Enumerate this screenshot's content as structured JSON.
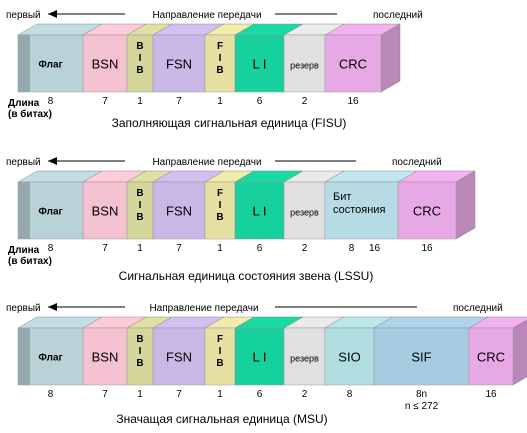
{
  "direction": {
    "first": "первый",
    "title": "Направление передачи",
    "last": "последний"
  },
  "length_label": [
    "Длина",
    "(в битах)"
  ],
  "frames": [
    {
      "id": "fisu",
      "caption": "Заполняющая сигнальная единица (FISU)",
      "show_length_label": true,
      "fields": [
        {
          "key": "flag",
          "label": [
            "Флаг"
          ],
          "bits": "8",
          "color": "#b9d2d8"
        },
        {
          "key": "bsn",
          "label": [
            "BSN"
          ],
          "bits": "7",
          "color": "#f3c1cf"
        },
        {
          "key": "bib",
          "label": [
            "B",
            "I",
            "B"
          ],
          "bits": "1",
          "color": "#d4d69c",
          "vertical": true
        },
        {
          "key": "fsn",
          "label": [
            "FSN"
          ],
          "bits": "7",
          "color": "#c9b7e5"
        },
        {
          "key": "fib",
          "label": [
            "F",
            "I",
            "B"
          ],
          "bits": "1",
          "color": "#e6e1a2",
          "vertical": true
        },
        {
          "key": "li",
          "label": [
            "L I"
          ],
          "bits": "6",
          "color": "#16d09d"
        },
        {
          "key": "rezerv",
          "label": [
            "резерв"
          ],
          "bits": "2",
          "color": "#e0e0e0",
          "small": true
        },
        {
          "key": "crc",
          "label": [
            "CRC"
          ],
          "bits": "16",
          "color": "#e7a9e6"
        }
      ]
    },
    {
      "id": "lssu",
      "caption": "Сигнальная единица состояния звена  (LSSU)",
      "show_length_label": true,
      "fields": [
        {
          "key": "flag",
          "label": [
            "Флаг"
          ],
          "bits": "8",
          "color": "#b9d2d8"
        },
        {
          "key": "bsn",
          "label": [
            "BSN"
          ],
          "bits": "7",
          "color": "#f3c1cf"
        },
        {
          "key": "bib",
          "label": [
            "B",
            "I",
            "B"
          ],
          "bits": "1",
          "color": "#d4d69c",
          "vertical": true
        },
        {
          "key": "fsn",
          "label": [
            "FSN"
          ],
          "bits": "7",
          "color": "#c9b7e5"
        },
        {
          "key": "fib",
          "label": [
            "F",
            "I",
            "B"
          ],
          "bits": "1",
          "color": "#e6e1a2",
          "vertical": true
        },
        {
          "key": "li",
          "label": [
            "L I"
          ],
          "bits": "6",
          "color": "#16d09d"
        },
        {
          "key": "rezerv",
          "label": [
            "резерв"
          ],
          "bits": "2",
          "color": "#e0e0e0",
          "small": true
        },
        {
          "key": "status",
          "label": [
            "Бит",
            "состояния"
          ],
          "bits": "8",
          "bits2": "16",
          "color": "#b7dbe5",
          "left_align": true
        },
        {
          "key": "crc",
          "label": [
            "CRC"
          ],
          "bits": "16",
          "color": "#e7a9e6"
        }
      ]
    },
    {
      "id": "msu",
      "caption": "Значащая сигнальная единица (MSU)",
      "show_length_label": false,
      "fields": [
        {
          "key": "flag",
          "label": [
            "Флаг"
          ],
          "bits": "8",
          "color": "#b9d2d8"
        },
        {
          "key": "bsn",
          "label": [
            "BSN"
          ],
          "bits": "7",
          "color": "#f3c1cf"
        },
        {
          "key": "bib",
          "label": [
            "B",
            "I",
            "B"
          ],
          "bits": "1",
          "color": "#d4d69c",
          "vertical": true
        },
        {
          "key": "fsn",
          "label": [
            "FSN"
          ],
          "bits": "7",
          "color": "#c9b7e5"
        },
        {
          "key": "fib",
          "label": [
            "F",
            "I",
            "B"
          ],
          "bits": "1",
          "color": "#e6e1a2",
          "vertical": true
        },
        {
          "key": "li",
          "label": [
            "L I"
          ],
          "bits": "6",
          "color": "#16d09d"
        },
        {
          "key": "rezerv",
          "label": [
            "резерв"
          ],
          "bits": "2",
          "color": "#e0e0e0",
          "small": true
        },
        {
          "key": "sio",
          "label": [
            "SIO"
          ],
          "bits": "8",
          "color": "#b0dee0"
        },
        {
          "key": "sif",
          "label": [
            "SIF"
          ],
          "bits": "8n",
          "bits_sub": "n ≤ 272",
          "color": "#a7cbe0"
        },
        {
          "key": "crc",
          "label": [
            "CRC"
          ],
          "bits": "16",
          "color": "#e7a9e6"
        }
      ]
    }
  ]
}
